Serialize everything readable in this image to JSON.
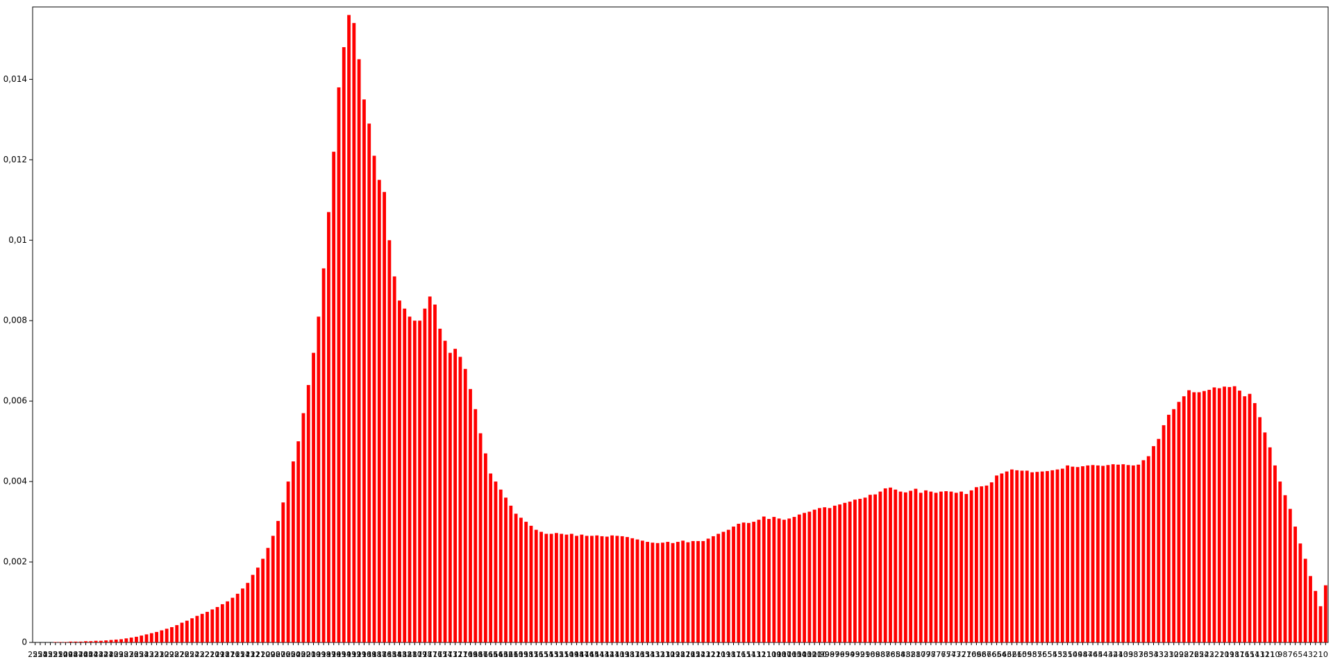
{
  "chart_data": {
    "type": "bar",
    "color": "#ff0000",
    "categories": [
      "255",
      "254",
      "253",
      "252",
      "251",
      "250",
      "249",
      "248",
      "247",
      "246",
      "245",
      "244",
      "243",
      "242",
      "241",
      "240",
      "239",
      "238",
      "237",
      "236",
      "235",
      "234",
      "233",
      "232",
      "231",
      "230",
      "229",
      "228",
      "227",
      "226",
      "225",
      "224",
      "223",
      "222",
      "221",
      "220",
      "219",
      "218",
      "217",
      "216",
      "215",
      "214",
      "213",
      "212",
      "211",
      "210",
      "209",
      "208",
      "207",
      "206",
      "205",
      "204",
      "203",
      "202",
      "201",
      "200",
      "199",
      "198",
      "197",
      "196",
      "195",
      "194",
      "193",
      "192",
      "191",
      "190",
      "189",
      "188",
      "187",
      "186",
      "185",
      "184",
      "183",
      "182",
      "181",
      "180",
      "179",
      "178",
      "177",
      "176",
      "175",
      "174",
      "173",
      "172",
      "171",
      "170",
      "169",
      "168",
      "167",
      "166",
      "165",
      "164",
      "163",
      "162",
      "161",
      "160",
      "159",
      "158",
      "157",
      "156",
      "155",
      "154",
      "153",
      "152",
      "151",
      "150",
      "149",
      "148",
      "147",
      "146",
      "145",
      "144",
      "143",
      "142",
      "141",
      "140",
      "139",
      "138",
      "137",
      "136",
      "135",
      "134",
      "133",
      "132",
      "131",
      "130",
      "129",
      "128",
      "127",
      "126",
      "125",
      "124",
      "123",
      "122",
      "121",
      "120",
      "119",
      "118",
      "117",
      "116",
      "115",
      "114",
      "113",
      "112",
      "111",
      "110",
      "109",
      "108",
      "107",
      "106",
      "105",
      "104",
      "103",
      "102",
      "101",
      "100",
      "99",
      "98",
      "97",
      "96",
      "95",
      "94",
      "93",
      "92",
      "91",
      "90",
      "89",
      "88",
      "87",
      "86",
      "85",
      "84",
      "83",
      "82",
      "81",
      "80",
      "79",
      "78",
      "77",
      "76",
      "75",
      "74",
      "73",
      "72",
      "71",
      "70",
      "69",
      "68",
      "67",
      "66",
      "65",
      "64",
      "63",
      "62",
      "61",
      "60",
      "59",
      "58",
      "57",
      "56",
      "55",
      "54",
      "53",
      "52",
      "51",
      "50",
      "49",
      "48",
      "47",
      "46",
      "45",
      "44",
      "43",
      "42",
      "41",
      "40",
      "39",
      "38",
      "37",
      "36",
      "35",
      "34",
      "33",
      "32",
      "31",
      "30",
      "29",
      "28",
      "27",
      "26",
      "25",
      "24",
      "23",
      "22",
      "21",
      "20",
      "19",
      "18",
      "17",
      "16",
      "15",
      "14",
      "13",
      "12",
      "11",
      "10",
      "9",
      "8",
      "7",
      "6",
      "5",
      "4",
      "3",
      "2",
      "1",
      "0"
    ],
    "values": [
      0,
      0,
      0,
      0,
      1e-05,
      1e-05,
      1e-05,
      2e-05,
      2e-05,
      2e-05,
      3e-05,
      3e-05,
      4e-05,
      4e-05,
      5e-05,
      6e-05,
      7e-05,
      8e-05,
      0.0001,
      0.00012,
      0.00014,
      0.00017,
      0.0002,
      0.00023,
      0.00026,
      0.0003,
      0.00034,
      0.00038,
      0.00043,
      0.00049,
      0.00054,
      0.0006,
      0.00066,
      0.00071,
      0.00076,
      0.00082,
      0.00088,
      0.00095,
      0.00102,
      0.00111,
      0.00121,
      0.00134,
      0.00148,
      0.00168,
      0.00186,
      0.00208,
      0.00235,
      0.00265,
      0.00302,
      0.00348,
      0.004,
      0.0045,
      0.005,
      0.0057,
      0.0064,
      0.0072,
      0.0081,
      0.0093,
      0.0107,
      0.0122,
      0.0138,
      0.0148,
      0.0156,
      0.0154,
      0.0145,
      0.0135,
      0.0129,
      0.0121,
      0.0115,
      0.0112,
      0.01,
      0.0091,
      0.0085,
      0.0083,
      0.0081,
      0.008,
      0.008,
      0.0083,
      0.0086,
      0.0084,
      0.0078,
      0.0075,
      0.0072,
      0.0073,
      0.0071,
      0.0068,
      0.0063,
      0.0058,
      0.0052,
      0.0047,
      0.0042,
      0.004,
      0.0038,
      0.0036,
      0.0034,
      0.0032,
      0.0031,
      0.003,
      0.0029,
      0.0028,
      0.00275,
      0.0027,
      0.0027,
      0.00272,
      0.0027,
      0.00268,
      0.0027,
      0.00265,
      0.00268,
      0.00265,
      0.00265,
      0.00266,
      0.00264,
      0.00263,
      0.00266,
      0.00265,
      0.00264,
      0.00262,
      0.00259,
      0.00256,
      0.00253,
      0.0025,
      0.00248,
      0.00247,
      0.00248,
      0.0025,
      0.00247,
      0.0025,
      0.00253,
      0.00249,
      0.00252,
      0.00252,
      0.00252,
      0.00258,
      0.00264,
      0.0027,
      0.00275,
      0.0028,
      0.00288,
      0.00295,
      0.00298,
      0.00297,
      0.003,
      0.00305,
      0.00313,
      0.00307,
      0.00312,
      0.00308,
      0.00305,
      0.00308,
      0.00312,
      0.00318,
      0.00322,
      0.00325,
      0.0033,
      0.00334,
      0.00336,
      0.00334,
      0.0034,
      0.00343,
      0.00347,
      0.0035,
      0.00355,
      0.00357,
      0.0036,
      0.00367,
      0.00368,
      0.00375,
      0.00383,
      0.00385,
      0.0038,
      0.00375,
      0.00373,
      0.00377,
      0.00382,
      0.00372,
      0.00378,
      0.00375,
      0.00372,
      0.00375,
      0.00376,
      0.00375,
      0.00372,
      0.00375,
      0.00369,
      0.00378,
      0.00386,
      0.00388,
      0.0039,
      0.00398,
      0.00415,
      0.0042,
      0.00425,
      0.0043,
      0.00428,
      0.00427,
      0.00427,
      0.00423,
      0.00424,
      0.00425,
      0.00426,
      0.00428,
      0.0043,
      0.00432,
      0.0044,
      0.00437,
      0.00436,
      0.00438,
      0.0044,
      0.00441,
      0.0044,
      0.00439,
      0.00441,
      0.00443,
      0.00442,
      0.00443,
      0.00441,
      0.0044,
      0.00442,
      0.00453,
      0.00463,
      0.00488,
      0.00506,
      0.0054,
      0.00566,
      0.0058,
      0.00598,
      0.00612,
      0.00627,
      0.00622,
      0.00622,
      0.00625,
      0.00628,
      0.00634,
      0.00632,
      0.00636,
      0.00635,
      0.00637,
      0.00626,
      0.00612,
      0.00618,
      0.00595,
      0.0056,
      0.00522,
      0.00485,
      0.0044,
      0.004,
      0.00366,
      0.00332,
      0.00288,
      0.00246,
      0.00208,
      0.00165,
      0.00128,
      0.0009,
      0.00142
    ],
    "ylim": [
      0,
      0.0158
    ],
    "yticks": [
      0,
      {
        "value": 0.002,
        "label": "0,002"
      },
      {
        "value": 0.004,
        "label": "0,004"
      },
      {
        "value": 0.006,
        "label": "0,006"
      },
      {
        "value": 0.008,
        "label": "0,008"
      },
      {
        "value": 0.01,
        "label": "0,01"
      },
      {
        "value": 0.012,
        "label": "0,012"
      },
      {
        "value": 0.014,
        "label": "0,014"
      }
    ],
    "grid": false
  }
}
